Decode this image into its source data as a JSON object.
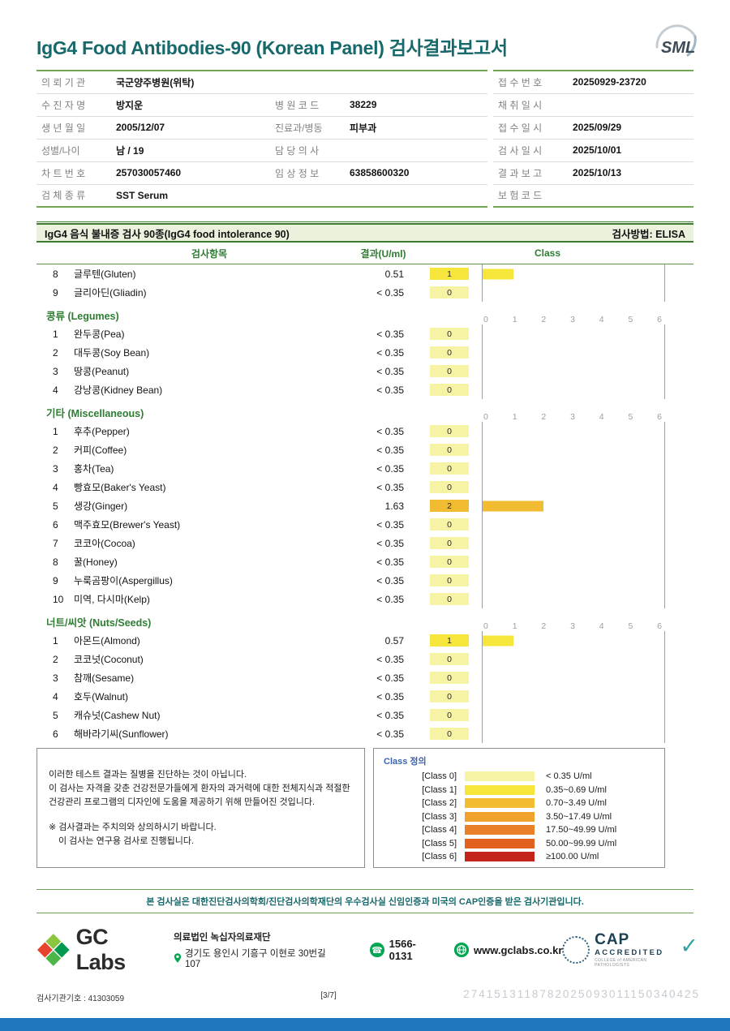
{
  "header": {
    "title": "IgG4 Food Antibodies-90 (Korean Panel) 검사결과보고서",
    "logo_text": "SML"
  },
  "patient": {
    "l0": {
      "label": "의 뢰 기 관",
      "value": "국군양주병원(위탁)"
    },
    "l1": {
      "label": "수 진 자 명",
      "value": "방지운",
      "label2": "병 원 코 드",
      "value2": "38229"
    },
    "l2": {
      "label": "생 년 월 일",
      "value": "2005/12/07",
      "label2": "진료과/병동",
      "value2": "피부과"
    },
    "l3": {
      "label": "성별/나이",
      "value": "남 / 19",
      "label2": "담 당 의 사",
      "value2": ""
    },
    "l4": {
      "label": "차 트 번 호",
      "value": "257030057460",
      "label2": "임 상 정 보",
      "value2": "63858600320"
    },
    "l5": {
      "label": "검 체 종 류",
      "value": "SST Serum"
    },
    "r0": {
      "label": "접 수 번 호",
      "value": "20250929-23720"
    },
    "r1": {
      "label": "채 취 일 시",
      "value": ""
    },
    "r2": {
      "label": "접 수 일 시",
      "value": "2025/09/29"
    },
    "r3": {
      "label": "검 사 일 시",
      "value": "2025/10/01"
    },
    "r4": {
      "label": "결 과 보 고",
      "value": "2025/10/13"
    },
    "r5": {
      "label": "보 험 코 드",
      "value": ""
    }
  },
  "results": {
    "title": "IgG4 음식 불내증 검사 90종(IgG4 food intolerance 90)",
    "method": "검사방법: ELISA",
    "columns": {
      "item": "검사항목",
      "result": "결과(U/ml)",
      "class_label": "Class"
    },
    "scale_ticks": [
      "0",
      "1",
      "2",
      "3",
      "4",
      "5",
      "6"
    ],
    "class_colors": [
      "#F6F3A5",
      "#F6E63C",
      "#F2BC32",
      "#EFA22C",
      "#E97F26",
      "#E1601E",
      "#C3251B"
    ],
    "sections": [
      {
        "name": null,
        "items": [
          {
            "no": "8",
            "name": "글루텐(Gluten)",
            "result": "0.51",
            "cls": 1
          },
          {
            "no": "9",
            "name": "글리아딘(Gliadin)",
            "result": "< 0.35",
            "cls": 0
          }
        ]
      },
      {
        "name": "콩류 (Legumes)",
        "items": [
          {
            "no": "1",
            "name": "완두콩(Pea)",
            "result": "< 0.35",
            "cls": 0
          },
          {
            "no": "2",
            "name": "대두콩(Soy Bean)",
            "result": "< 0.35",
            "cls": 0
          },
          {
            "no": "3",
            "name": "땅콩(Peanut)",
            "result": "< 0.35",
            "cls": 0
          },
          {
            "no": "4",
            "name": "강낭콩(Kidney Bean)",
            "result": "< 0.35",
            "cls": 0
          }
        ]
      },
      {
        "name": "기타 (Miscellaneous)",
        "items": [
          {
            "no": "1",
            "name": "후추(Pepper)",
            "result": "< 0.35",
            "cls": 0
          },
          {
            "no": "2",
            "name": "커피(Coffee)",
            "result": "< 0.35",
            "cls": 0
          },
          {
            "no": "3",
            "name": "홍차(Tea)",
            "result": "< 0.35",
            "cls": 0
          },
          {
            "no": "4",
            "name": "빵효모(Baker's Yeast)",
            "result": "< 0.35",
            "cls": 0
          },
          {
            "no": "5",
            "name": "생강(Ginger)",
            "result": "1.63",
            "cls": 2
          },
          {
            "no": "6",
            "name": "맥주효모(Brewer's Yeast)",
            "result": "< 0.35",
            "cls": 0
          },
          {
            "no": "7",
            "name": "코코아(Cocoa)",
            "result": "< 0.35",
            "cls": 0
          },
          {
            "no": "8",
            "name": "꿀(Honey)",
            "result": "< 0.35",
            "cls": 0
          },
          {
            "no": "9",
            "name": "누룩곰팡이(Aspergillus)",
            "result": "< 0.35",
            "cls": 0
          },
          {
            "no": "10",
            "name": "미역, 다시마(Kelp)",
            "result": "< 0.35",
            "cls": 0
          }
        ]
      },
      {
        "name": "너트/씨앗 (Nuts/Seeds)",
        "items": [
          {
            "no": "1",
            "name": "아몬드(Almond)",
            "result": "0.57",
            "cls": 1
          },
          {
            "no": "2",
            "name": "코코넛(Coconut)",
            "result": "< 0.35",
            "cls": 0
          },
          {
            "no": "3",
            "name": "참깨(Sesame)",
            "result": "< 0.35",
            "cls": 0
          },
          {
            "no": "4",
            "name": "호두(Walnut)",
            "result": "< 0.35",
            "cls": 0
          },
          {
            "no": "5",
            "name": "캐슈넛(Cashew Nut)",
            "result": "< 0.35",
            "cls": 0
          },
          {
            "no": "6",
            "name": "해바라기씨(Sunflower)",
            "result": "< 0.35",
            "cls": 0
          }
        ]
      }
    ]
  },
  "disclaimer": [
    "이러한 테스트 결과는 질병을 진단하는 것이 아닙니다.",
    "이 검사는 자격을 갖춘 건강전문가들에게 환자의 과거력에 대한 전체지식과 적절한 건강관리 프로그램의 디자인에 도움을 제공하기 위해 만들어진 것입니다.",
    "※ 검사결과는 주치의와 상의하시기 바랍니다.",
    "이 검사는 연구용 검사로 진행됩니다."
  ],
  "legend": {
    "title": "Class 정의",
    "rows": [
      {
        "label": "[Class 0]",
        "range": "< 0.35 U/ml"
      },
      {
        "label": "[Class 1]",
        "range": "0.35~0.69 U/ml"
      },
      {
        "label": "[Class 2]",
        "range": "0.70~3.49 U/ml"
      },
      {
        "label": "[Class 3]",
        "range": "3.50~17.49 U/ml"
      },
      {
        "label": "[Class 4]",
        "range": "17.50~49.99 U/ml"
      },
      {
        "label": "[Class 5]",
        "range": "50.00~99.99 U/ml"
      },
      {
        "label": "[Class 6]",
        "range": "≥100.00 U/ml"
      }
    ]
  },
  "cert_text": "본 검사실은 대한진단검사의학회/진단검사의학재단의 우수검사실 신임인증과 미국의 CAP인증을 받은 검사기관입니다.",
  "footer": {
    "company": "GC Labs",
    "org_name": "의료법인 녹십자의료재단",
    "address": "경기도 용인시 기흥구 이현로 30번길 107",
    "phone": "1566-0131",
    "website": "www.gclabs.co.kr",
    "cap_title": "CAP",
    "cap_subtitle": "ACCREDITED",
    "cap_tagline": "COLLEGE of AMERICAN PATHOLOGISTS",
    "cap_check": "✓",
    "org_code": "검사기관기호 : 41303059",
    "page_number": "[3/7]",
    "serial": "2741513118782025093011150340425"
  }
}
